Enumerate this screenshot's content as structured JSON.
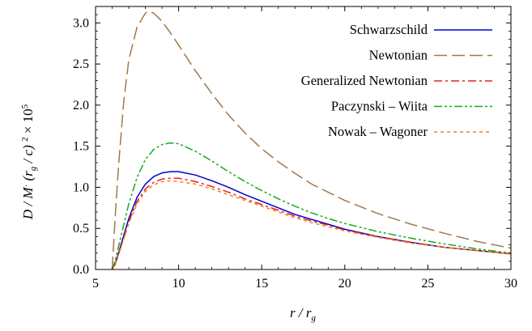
{
  "chart_data": {
    "type": "line",
    "title": "",
    "xlabel": "r / r_g",
    "ylabel": "D / Ṁ (r_g/c)^2 × 10^5",
    "xlim": [
      5,
      30
    ],
    "ylim": [
      0,
      3.2
    ],
    "x_ticks": [
      "5",
      "10",
      "15",
      "20",
      "25",
      "30"
    ],
    "y_ticks": [
      "0.0",
      "0.5",
      "1.0",
      "1.5",
      "2.0",
      "2.5",
      "3.0"
    ],
    "legend_position": "top-right",
    "grid": false,
    "series": [
      {
        "name": "Schwarzschild",
        "color": "#0000cc",
        "dash": "solid",
        "points": [
          [
            6.0,
            0.0
          ],
          [
            6.2,
            0.08
          ],
          [
            6.5,
            0.28
          ],
          [
            7.0,
            0.62
          ],
          [
            7.5,
            0.88
          ],
          [
            8.0,
            1.04
          ],
          [
            8.5,
            1.13
          ],
          [
            9.0,
            1.175
          ],
          [
            9.5,
            1.19
          ],
          [
            10.0,
            1.19
          ],
          [
            11.0,
            1.15
          ],
          [
            12.0,
            1.08
          ],
          [
            13.0,
            1.0
          ],
          [
            14.0,
            0.91
          ],
          [
            15.0,
            0.83
          ],
          [
            16.0,
            0.75
          ],
          [
            17.0,
            0.67
          ],
          [
            18.0,
            0.61
          ],
          [
            19.0,
            0.55
          ],
          [
            20.0,
            0.49
          ],
          [
            22.0,
            0.4
          ],
          [
            24.0,
            0.33
          ],
          [
            26.0,
            0.27
          ],
          [
            28.0,
            0.23
          ],
          [
            30.0,
            0.19
          ]
        ]
      },
      {
        "name": "Newtonian",
        "color": "#a0784b",
        "dash": "long-dash",
        "points": [
          [
            6.0,
            0.0
          ],
          [
            6.2,
            0.7
          ],
          [
            6.4,
            1.3
          ],
          [
            6.7,
            2.05
          ],
          [
            7.0,
            2.55
          ],
          [
            7.5,
            2.95
          ],
          [
            8.0,
            3.12
          ],
          [
            8.2,
            3.14
          ],
          [
            8.5,
            3.12
          ],
          [
            9.0,
            3.02
          ],
          [
            9.5,
            2.88
          ],
          [
            10.0,
            2.73
          ],
          [
            11.0,
            2.42
          ],
          [
            12.0,
            2.14
          ],
          [
            13.0,
            1.88
          ],
          [
            14.0,
            1.66
          ],
          [
            15.0,
            1.47
          ],
          [
            16.0,
            1.31
          ],
          [
            17.0,
            1.17
          ],
          [
            18.0,
            1.04
          ],
          [
            19.0,
            0.94
          ],
          [
            20.0,
            0.84
          ],
          [
            22.0,
            0.68
          ],
          [
            24.0,
            0.55
          ],
          [
            26.0,
            0.44
          ],
          [
            28.0,
            0.34
          ],
          [
            30.0,
            0.26
          ]
        ]
      },
      {
        "name": "Generalized Newtonian",
        "color": "#e8201a",
        "dash": "dash-dot",
        "points": [
          [
            6.0,
            0.0
          ],
          [
            6.2,
            0.07
          ],
          [
            6.5,
            0.26
          ],
          [
            7.0,
            0.58
          ],
          [
            7.5,
            0.83
          ],
          [
            8.0,
            0.98
          ],
          [
            8.5,
            1.06
          ],
          [
            9.0,
            1.1
          ],
          [
            9.5,
            1.11
          ],
          [
            10.0,
            1.11
          ],
          [
            11.0,
            1.07
          ],
          [
            12.0,
            1.01
          ],
          [
            13.0,
            0.94
          ],
          [
            14.0,
            0.86
          ],
          [
            15.0,
            0.79
          ],
          [
            16.0,
            0.72
          ],
          [
            17.0,
            0.65
          ],
          [
            18.0,
            0.59
          ],
          [
            19.0,
            0.54
          ],
          [
            20.0,
            0.48
          ],
          [
            22.0,
            0.4
          ],
          [
            24.0,
            0.33
          ],
          [
            26.0,
            0.27
          ],
          [
            28.0,
            0.23
          ],
          [
            30.0,
            0.19
          ]
        ]
      },
      {
        "name": "Paczynski – Wiita",
        "color": "#1aaa1a",
        "dash": "dash-dot-dot",
        "points": [
          [
            6.0,
            0.0
          ],
          [
            6.2,
            0.12
          ],
          [
            6.5,
            0.38
          ],
          [
            7.0,
            0.8
          ],
          [
            7.5,
            1.12
          ],
          [
            8.0,
            1.34
          ],
          [
            8.5,
            1.46
          ],
          [
            9.0,
            1.52
          ],
          [
            9.5,
            1.54
          ],
          [
            10.0,
            1.53
          ],
          [
            11.0,
            1.44
          ],
          [
            12.0,
            1.32
          ],
          [
            13.0,
            1.19
          ],
          [
            14.0,
            1.07
          ],
          [
            15.0,
            0.96
          ],
          [
            16.0,
            0.86
          ],
          [
            17.0,
            0.77
          ],
          [
            18.0,
            0.69
          ],
          [
            19.0,
            0.62
          ],
          [
            20.0,
            0.56
          ],
          [
            22.0,
            0.46
          ],
          [
            24.0,
            0.38
          ],
          [
            26.0,
            0.31
          ],
          [
            28.0,
            0.25
          ],
          [
            30.0,
            0.2
          ]
        ]
      },
      {
        "name": "Nowak – Wagoner",
        "color": "#f08020",
        "dash": "dotted",
        "points": [
          [
            6.0,
            0.0
          ],
          [
            6.2,
            0.07
          ],
          [
            6.5,
            0.25
          ],
          [
            7.0,
            0.56
          ],
          [
            7.5,
            0.8
          ],
          [
            8.0,
            0.95
          ],
          [
            8.5,
            1.03
          ],
          [
            9.0,
            1.07
          ],
          [
            9.5,
            1.08
          ],
          [
            10.0,
            1.07
          ],
          [
            11.0,
            1.04
          ],
          [
            12.0,
            0.98
          ],
          [
            13.0,
            0.91
          ],
          [
            14.0,
            0.84
          ],
          [
            15.0,
            0.77
          ],
          [
            16.0,
            0.7
          ],
          [
            17.0,
            0.63
          ],
          [
            18.0,
            0.57
          ],
          [
            19.0,
            0.52
          ],
          [
            20.0,
            0.47
          ],
          [
            22.0,
            0.39
          ],
          [
            24.0,
            0.32
          ],
          [
            26.0,
            0.27
          ],
          [
            28.0,
            0.23
          ],
          [
            30.0,
            0.19
          ]
        ]
      }
    ]
  }
}
